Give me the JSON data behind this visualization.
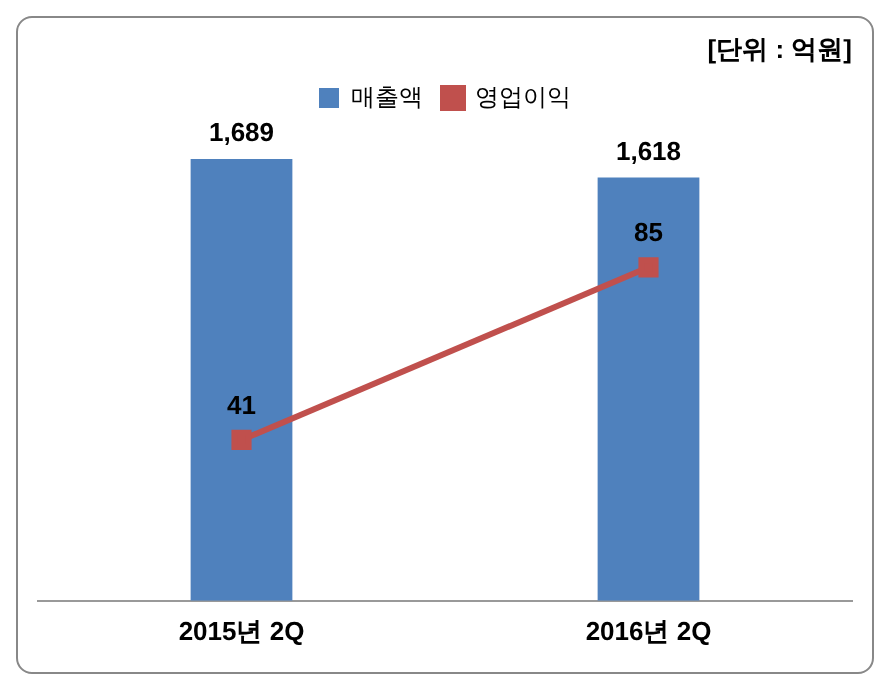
{
  "chart_data": {
    "type": "bar",
    "categories": [
      "2015년 2Q",
      "2016년 2Q"
    ],
    "series": [
      {
        "name": "매출액",
        "color": "#4f81bd",
        "values": [
          1689,
          1618
        ],
        "value_labels": [
          "1,689",
          "1,618"
        ]
      },
      {
        "name": "영업이익",
        "type": "line",
        "axis": "y2",
        "color": "#c0504d",
        "values": [
          41,
          85
        ],
        "marker": "square"
      }
    ],
    "tick_labels": "x",
    "data_labels": true,
    "grid": false,
    "legend": "top",
    "annotations": [
      "[단위 : 억원]"
    ]
  }
}
